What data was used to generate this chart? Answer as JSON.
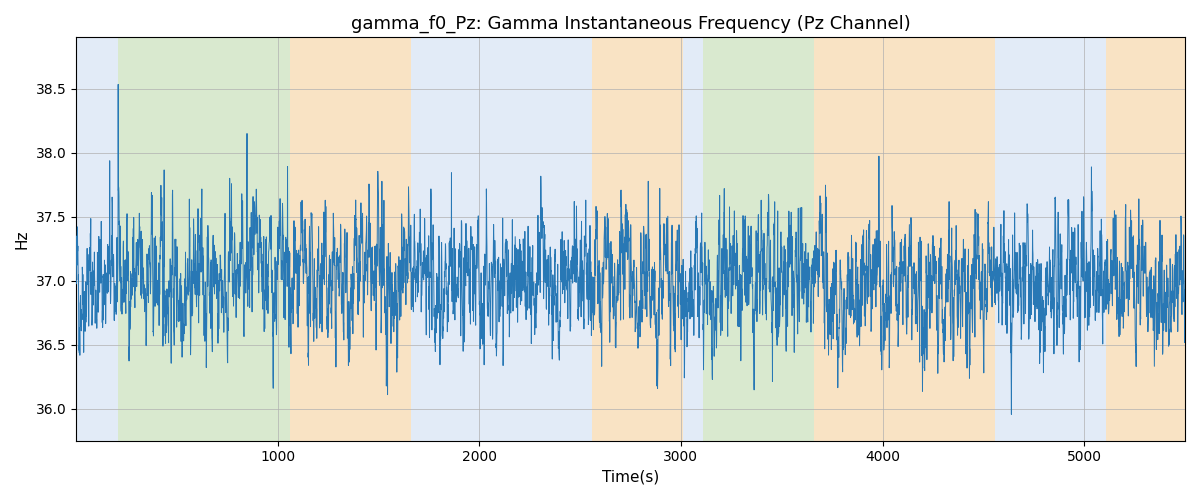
{
  "title": "gamma_f0_Pz: Gamma Instantaneous Frequency (Pz Channel)",
  "xlabel": "Time(s)",
  "ylabel": "Hz",
  "xlim": [
    0,
    5500
  ],
  "ylim": [
    35.75,
    38.9
  ],
  "yticks": [
    36.0,
    36.5,
    37.0,
    37.5,
    38.0,
    38.5
  ],
  "xticks": [
    1000,
    2000,
    3000,
    4000,
    5000
  ],
  "figsize": [
    12,
    5
  ],
  "dpi": 100,
  "line_color": "#2878b5",
  "line_width": 0.7,
  "background_color": "#ffffff",
  "grid_color": "#b0b0b0",
  "seed": 42,
  "n_points": 5500,
  "signal_mean": 37.0,
  "ar_phi": 0.75,
  "ar_sigma": 0.18,
  "color_bands": [
    {
      "xmin": 0,
      "xmax": 210,
      "color": "#c6d9f0",
      "alpha": 0.5
    },
    {
      "xmin": 210,
      "xmax": 1060,
      "color": "#b5d5a0",
      "alpha": 0.5
    },
    {
      "xmin": 1060,
      "xmax": 1660,
      "color": "#f5c98a",
      "alpha": 0.5
    },
    {
      "xmin": 1660,
      "xmax": 2560,
      "color": "#c6d9f0",
      "alpha": 0.5
    },
    {
      "xmin": 2560,
      "xmax": 3010,
      "color": "#f5c98a",
      "alpha": 0.5
    },
    {
      "xmin": 3010,
      "xmax": 3110,
      "color": "#c6d9f0",
      "alpha": 0.5
    },
    {
      "xmin": 3110,
      "xmax": 3660,
      "color": "#b5d5a0",
      "alpha": 0.5
    },
    {
      "xmin": 3660,
      "xmax": 3810,
      "color": "#f5c98a",
      "alpha": 0.5
    },
    {
      "xmin": 3810,
      "xmax": 4560,
      "color": "#f5c98a",
      "alpha": 0.5
    },
    {
      "xmin": 4560,
      "xmax": 5110,
      "color": "#c6d9f0",
      "alpha": 0.5
    },
    {
      "xmin": 5110,
      "xmax": 5500,
      "color": "#f5c98a",
      "alpha": 0.5
    }
  ]
}
